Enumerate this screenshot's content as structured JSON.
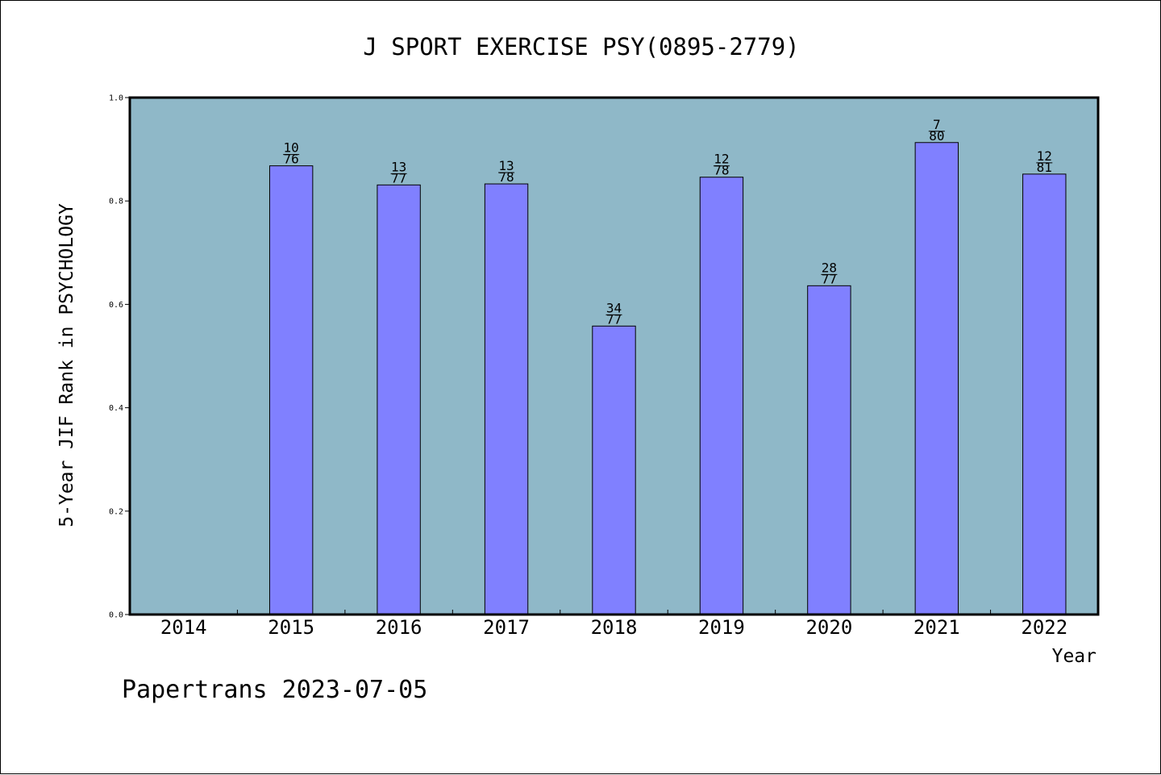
{
  "chart_data": {
    "type": "bar",
    "title": "J SPORT EXERCISE PSY(0895-2779)",
    "ylabel": "5-Year JIF Rank in PSYCHOLOGY",
    "xlabel": "Year",
    "categories": [
      "2014",
      "2015",
      "2016",
      "2017",
      "2018",
      "2019",
      "2020",
      "2021",
      "2022"
    ],
    "values": [
      null,
      0.868,
      0.831,
      0.833,
      0.558,
      0.846,
      0.636,
      0.913,
      0.852
    ],
    "bar_labels": [
      null,
      {
        "rank": "10",
        "total": "76"
      },
      {
        "rank": "13",
        "total": "77"
      },
      {
        "rank": "13",
        "total": "78"
      },
      {
        "rank": "34",
        "total": "77"
      },
      {
        "rank": "12",
        "total": "78"
      },
      {
        "rank": "28",
        "total": "77"
      },
      {
        "rank": "7",
        "total": "80"
      },
      {
        "rank": "12",
        "total": "81"
      }
    ],
    "ylim": [
      0,
      1.0
    ],
    "yticks": [
      "0.0",
      "0.2",
      "0.4",
      "0.6",
      "0.8",
      "1.0"
    ],
    "grid": false,
    "colors": {
      "plot_background": "#8fb8c8",
      "bar_fill": "#8080ff",
      "bar_stroke": "#000000"
    }
  },
  "footer": "Papertrans 2023-07-05"
}
